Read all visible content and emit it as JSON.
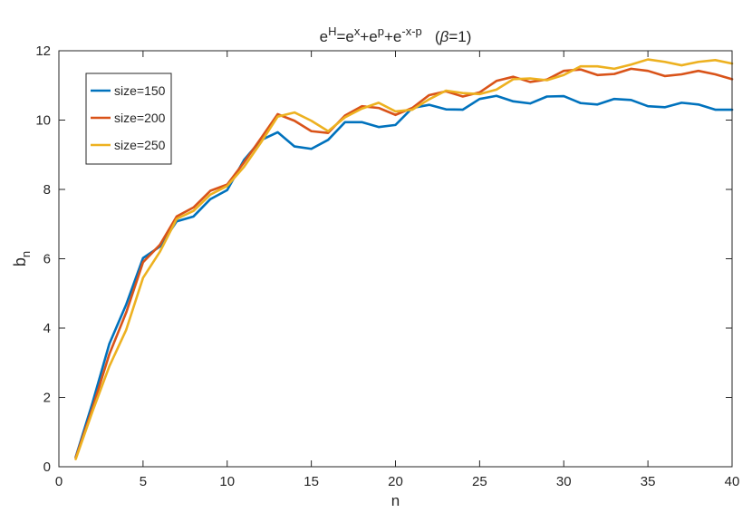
{
  "chart_data": {
    "type": "line",
    "title": {
      "parts": [
        {
          "text": "e",
          "sup": false
        },
        {
          "text": "H",
          "sup": true
        },
        {
          "text": "=e",
          "sup": false
        },
        {
          "text": "x",
          "sup": true
        },
        {
          "text": "+e",
          "sup": false
        },
        {
          "text": "p",
          "sup": true
        },
        {
          "text": "+e",
          "sup": false
        },
        {
          "text": "-x-p",
          "sup": true
        },
        {
          "text": "   (",
          "sup": false
        },
        {
          "text": "β",
          "sup": false,
          "italic": true
        },
        {
          "text": "=1)",
          "sup": false
        }
      ]
    },
    "xlabel": "n",
    "ylabel": {
      "base": "b",
      "sub": "n"
    },
    "xlim": [
      0,
      40
    ],
    "ylim": [
      0,
      12
    ],
    "xticks": [
      0,
      5,
      10,
      15,
      20,
      25,
      30,
      35,
      40
    ],
    "yticks": [
      0,
      2,
      4,
      6,
      8,
      10,
      12
    ],
    "grid": false,
    "legend_position": "top-left",
    "x": [
      1,
      2,
      3,
      4,
      5,
      6,
      7,
      8,
      9,
      10,
      11,
      12,
      13,
      14,
      15,
      16,
      17,
      18,
      19,
      20,
      21,
      22,
      23,
      24,
      25,
      26,
      27,
      28,
      29,
      30,
      31,
      32,
      33,
      34,
      35,
      36,
      37,
      38,
      39,
      40
    ],
    "series": [
      {
        "name": "size=150",
        "color": "#0072BD",
        "values": [
          0.28,
          1.85,
          3.55,
          4.68,
          6.02,
          6.35,
          7.08,
          7.22,
          7.72,
          7.98,
          8.85,
          9.42,
          9.65,
          9.24,
          9.17,
          9.43,
          9.94,
          9.94,
          9.8,
          9.86,
          10.35,
          10.44,
          10.31,
          10.3,
          10.61,
          10.7,
          10.54,
          10.48,
          10.68,
          10.69,
          10.49,
          10.45,
          10.61,
          10.58,
          10.4,
          10.37,
          10.5,
          10.45,
          10.3,
          10.3
        ]
      },
      {
        "name": "size=200",
        "color": "#D95319",
        "values": [
          0.26,
          1.7,
          3.25,
          4.45,
          5.9,
          6.4,
          7.22,
          7.48,
          7.96,
          8.14,
          8.78,
          9.47,
          10.17,
          9.98,
          9.68,
          9.63,
          10.13,
          10.4,
          10.35,
          10.15,
          10.35,
          10.72,
          10.83,
          10.68,
          10.8,
          11.13,
          11.25,
          11.1,
          11.17,
          11.42,
          11.46,
          11.3,
          11.33,
          11.48,
          11.42,
          11.27,
          11.32,
          11.42,
          11.32,
          11.18
        ]
      },
      {
        "name": "size=250",
        "color": "#EDB120",
        "values": [
          0.22,
          1.6,
          2.9,
          3.95,
          5.45,
          6.2,
          7.15,
          7.38,
          7.85,
          8.1,
          8.65,
          9.35,
          10.1,
          10.22,
          9.98,
          9.68,
          10.08,
          10.33,
          10.5,
          10.25,
          10.3,
          10.6,
          10.85,
          10.78,
          10.75,
          10.88,
          11.18,
          11.2,
          11.15,
          11.3,
          11.55,
          11.55,
          11.48,
          11.6,
          11.75,
          11.68,
          11.58,
          11.68,
          11.73,
          11.63
        ]
      }
    ]
  }
}
